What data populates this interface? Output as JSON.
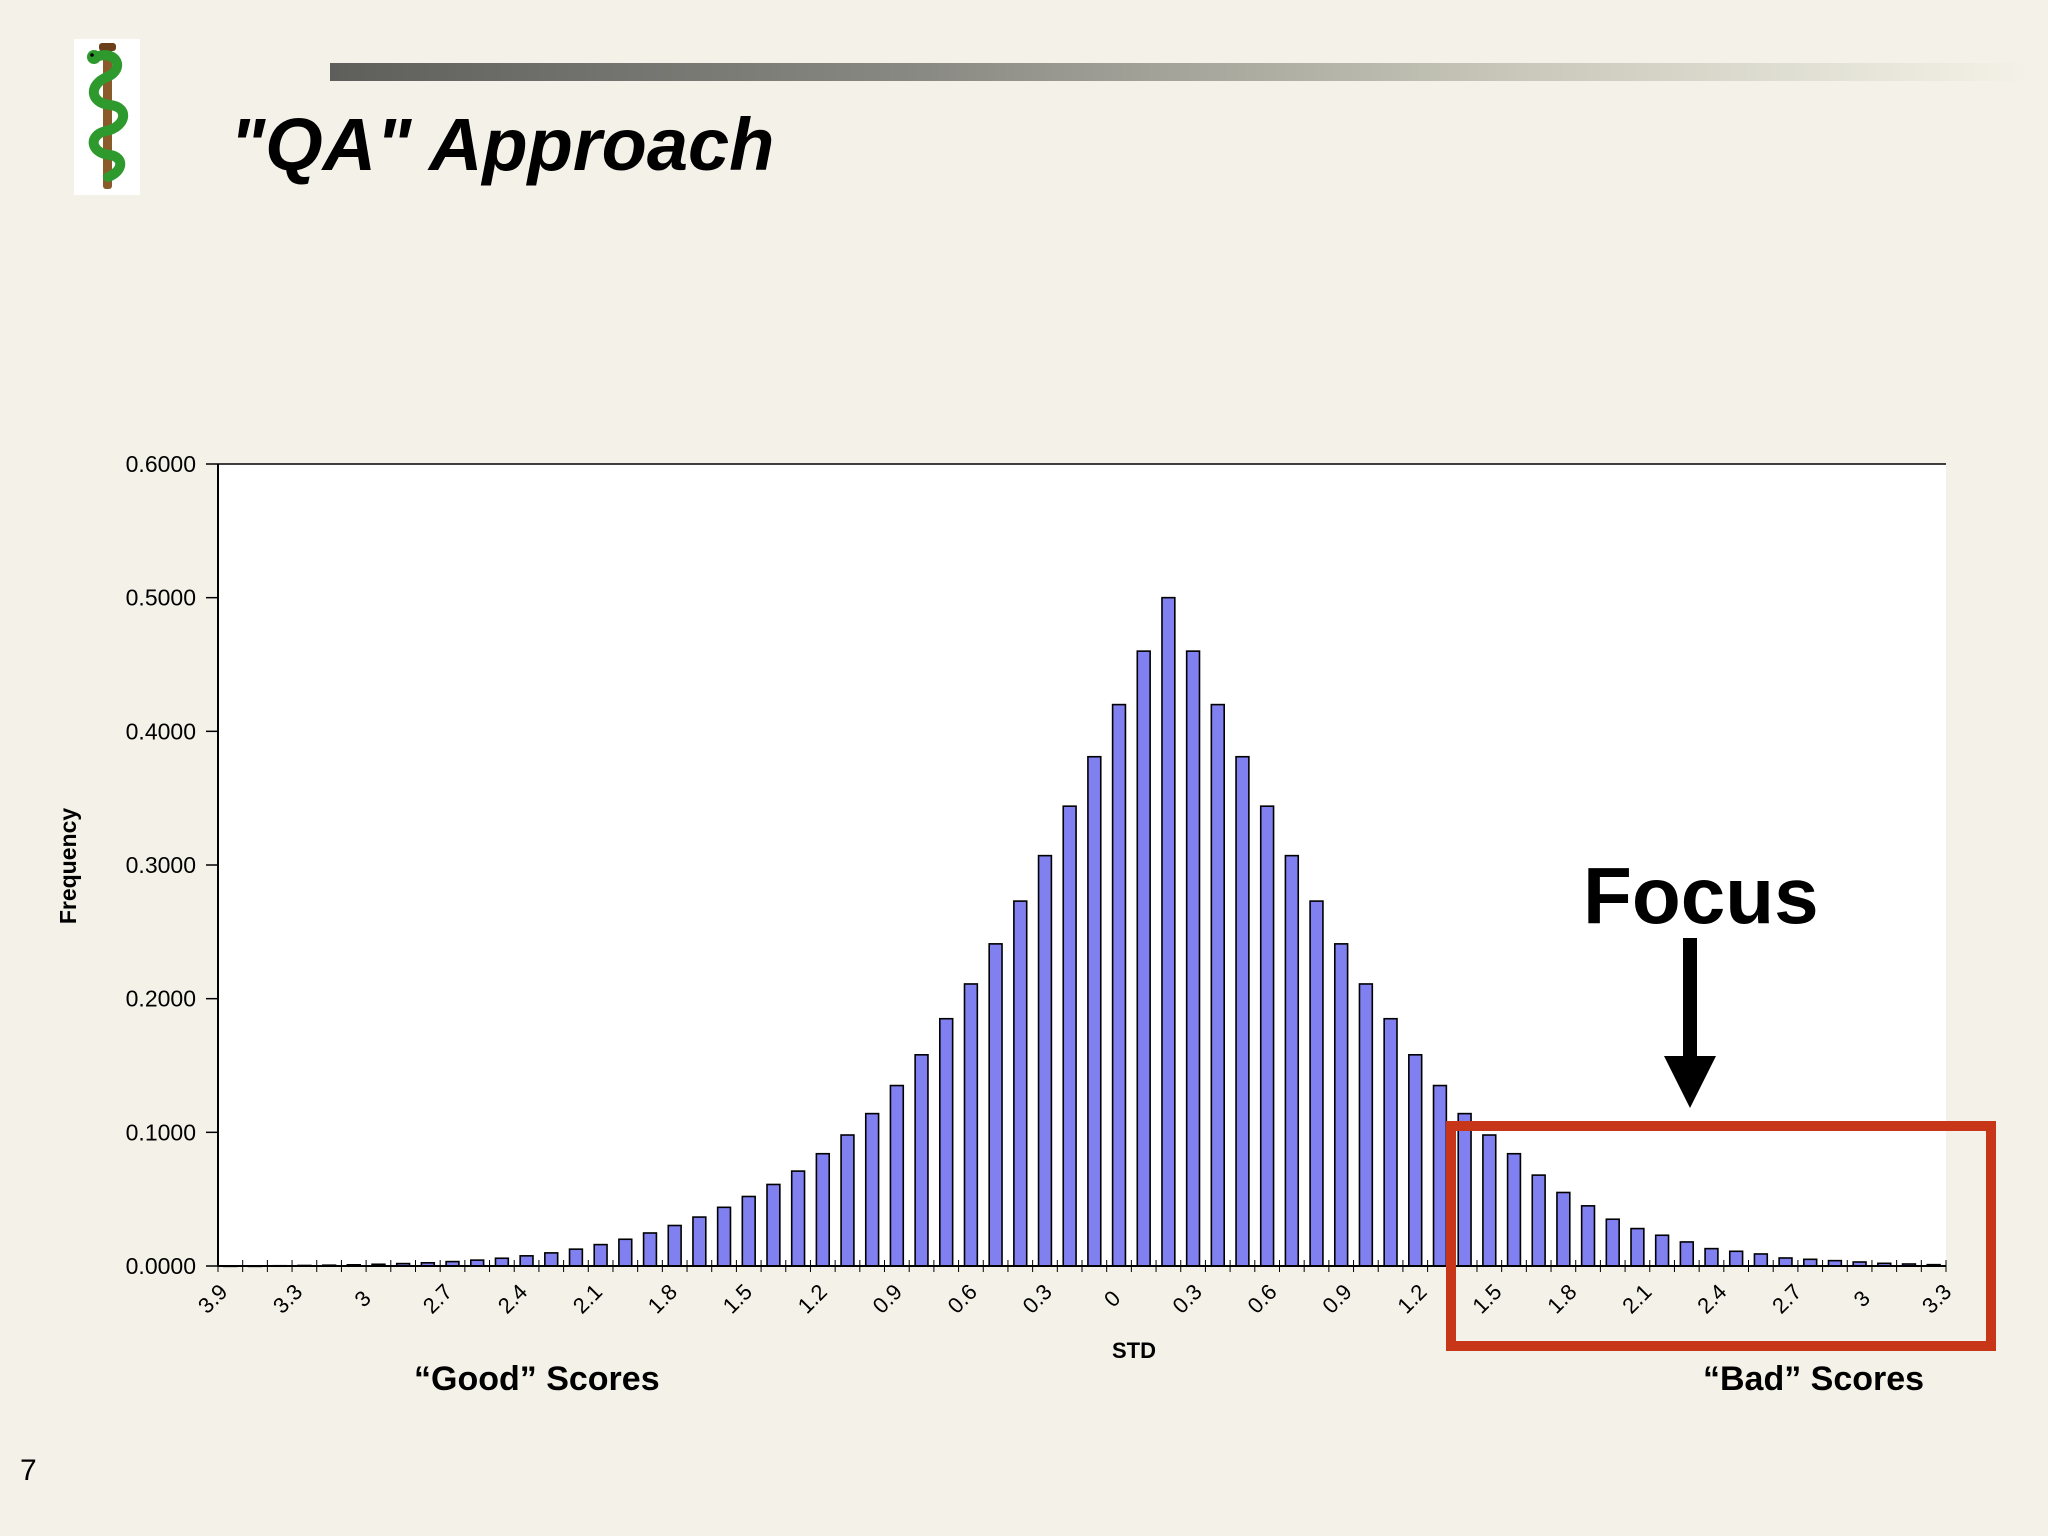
{
  "slide": {
    "title": "\"QA\" Approach",
    "page_number": "7",
    "logo_icon": "rod-of-asclepius-icon"
  },
  "annotations": {
    "focus_label": "Focus",
    "good_label": "“Good” Scores",
    "bad_label": "“Bad” Scores",
    "box_color": "#c8361a"
  },
  "chart_data": {
    "type": "bar",
    "title": "",
    "xlabel": "STD",
    "ylabel": "Frequency",
    "ylim": [
      0,
      0.6
    ],
    "yticks": [
      "0.0000",
      "0.1000",
      "0.2000",
      "0.3000",
      "0.4000",
      "0.5000",
      "0.6000"
    ],
    "xtick_labels": [
      "3.9",
      "3.3",
      "3",
      "2.7",
      "2.4",
      "2.1",
      "1.8",
      "1.5",
      "1.2",
      "0.9",
      "0.6",
      "0.3",
      "0",
      "0.3",
      "0.6",
      "0.9",
      "1.2",
      "1.5",
      "1.8",
      "2.1",
      "2.4",
      "2.7",
      "3",
      "3.3"
    ],
    "bar_color": "#8080f0",
    "grid": false,
    "values": [
      0.0001,
      0.0001,
      0.0002,
      0.0004,
      0.0006,
      0.0009,
      0.0013,
      0.0018,
      0.0024,
      0.0033,
      0.0044,
      0.0058,
      0.0076,
      0.0098,
      0.0126,
      0.016,
      0.02,
      0.0247,
      0.0303,
      0.0366,
      0.0439,
      0.052,
      0.061,
      0.071,
      0.084,
      0.098,
      0.114,
      0.135,
      0.158,
      0.185,
      0.211,
      0.241,
      0.273,
      0.307,
      0.344,
      0.381,
      0.42,
      0.46,
      0.5,
      0.46,
      0.42,
      0.381,
      0.344,
      0.307,
      0.273,
      0.241,
      0.211,
      0.185,
      0.158,
      0.135,
      0.114,
      0.098,
      0.084,
      0.068,
      0.055,
      0.045,
      0.035,
      0.028,
      0.023,
      0.018,
      0.013,
      0.011,
      0.009,
      0.006,
      0.005,
      0.004,
      0.003,
      0.002,
      0.0015,
      0.001
    ]
  }
}
